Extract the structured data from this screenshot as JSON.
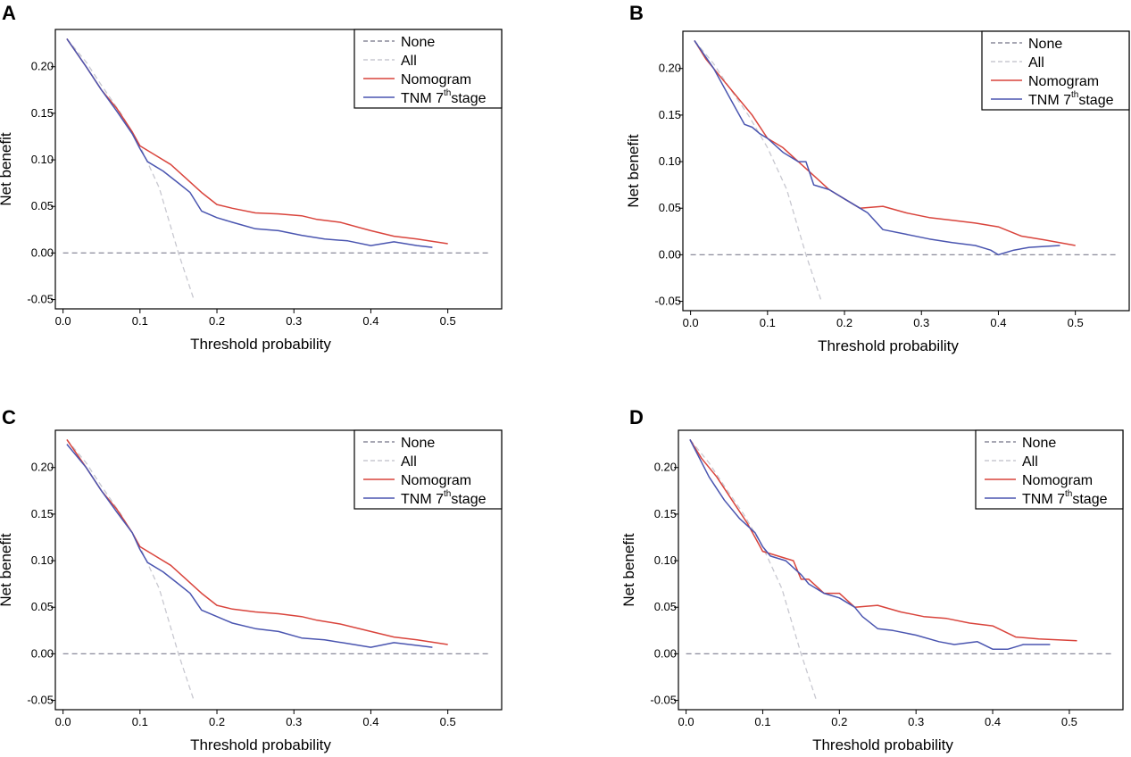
{
  "figure": {
    "colors": {
      "none": "#8a8a9a",
      "all": "#c8c8d0",
      "nomogram": "#d9443c",
      "tnm": "#4a55b0"
    }
  },
  "chart_data": [
    {
      "panel": "A",
      "type": "line",
      "xlabel": "Threshold probability",
      "ylabel": "Net benefit",
      "xticks": [
        "0.0",
        "0.1",
        "0.2",
        "0.3",
        "0.4",
        "0.5"
      ],
      "yticks": [
        "-0.05",
        "0.00",
        "0.05",
        "0.10",
        "0.15",
        "0.20"
      ],
      "xlim": [
        -0.01,
        0.57
      ],
      "ylim": [
        -0.06,
        0.24
      ],
      "legend": {
        "position": "top-right",
        "entries": [
          "None",
          "All",
          "Nomogram",
          "TNM 7",
          "th",
          "stage"
        ]
      },
      "series": [
        {
          "name": "None",
          "style": "dashed",
          "color": "#8a8a9a",
          "x": [
            0.0,
            0.555
          ],
          "y": [
            0.0,
            0.0
          ]
        },
        {
          "name": "All",
          "style": "dashed",
          "color": "#c8c8d0",
          "x": [
            0.005,
            0.03,
            0.05,
            0.075,
            0.1,
            0.125,
            0.15,
            0.17
          ],
          "y": [
            0.23,
            0.205,
            0.18,
            0.15,
            0.115,
            0.07,
            0.0,
            -0.05
          ]
        },
        {
          "name": "Nomogram",
          "style": "solid",
          "color": "#d9443c",
          "x": [
            0.005,
            0.03,
            0.05,
            0.07,
            0.09,
            0.1,
            0.12,
            0.14,
            0.16,
            0.18,
            0.2,
            0.22,
            0.25,
            0.28,
            0.31,
            0.33,
            0.36,
            0.4,
            0.43,
            0.46,
            0.5
          ],
          "y": [
            0.23,
            0.2,
            0.175,
            0.155,
            0.13,
            0.115,
            0.105,
            0.095,
            0.08,
            0.065,
            0.052,
            0.048,
            0.043,
            0.042,
            0.04,
            0.036,
            0.033,
            0.024,
            0.018,
            0.015,
            0.01
          ]
        },
        {
          "name": "TNM 7th stage",
          "style": "solid",
          "color": "#4a55b0",
          "x": [
            0.005,
            0.03,
            0.05,
            0.07,
            0.09,
            0.1,
            0.11,
            0.13,
            0.15,
            0.165,
            0.18,
            0.2,
            0.22,
            0.25,
            0.28,
            0.31,
            0.34,
            0.37,
            0.4,
            0.43,
            0.46,
            0.48
          ],
          "y": [
            0.23,
            0.2,
            0.175,
            0.152,
            0.128,
            0.112,
            0.098,
            0.088,
            0.075,
            0.065,
            0.045,
            0.038,
            0.033,
            0.026,
            0.024,
            0.019,
            0.015,
            0.013,
            0.008,
            0.012,
            0.008,
            0.006
          ]
        }
      ]
    },
    {
      "panel": "B",
      "type": "line",
      "xlabel": "Threshold probability",
      "ylabel": "Net benefit",
      "xticks": [
        "0.0",
        "0.1",
        "0.2",
        "0.3",
        "0.4",
        "0.5"
      ],
      "yticks": [
        "-0.05",
        "0.00",
        "0.05",
        "0.10",
        "0.15",
        "0.20"
      ],
      "xlim": [
        -0.01,
        0.57
      ],
      "ylim": [
        -0.06,
        0.24
      ],
      "legend": {
        "position": "top-right",
        "entries": [
          "None",
          "All",
          "Nomogram",
          "TNM 7",
          "th",
          "stage"
        ]
      },
      "series": [
        {
          "name": "None",
          "style": "dashed",
          "color": "#8a8a9a",
          "x": [
            0.0,
            0.555
          ],
          "y": [
            0.0,
            0.0
          ]
        },
        {
          "name": "All",
          "style": "dashed",
          "color": "#c8c8d0",
          "x": [
            0.005,
            0.03,
            0.05,
            0.075,
            0.1,
            0.125,
            0.15,
            0.17
          ],
          "y": [
            0.23,
            0.205,
            0.18,
            0.15,
            0.115,
            0.07,
            0.0,
            -0.05
          ]
        },
        {
          "name": "Nomogram",
          "style": "solid",
          "color": "#d9443c",
          "x": [
            0.005,
            0.02,
            0.04,
            0.06,
            0.08,
            0.1,
            0.12,
            0.14,
            0.16,
            0.18,
            0.2,
            0.22,
            0.25,
            0.28,
            0.31,
            0.34,
            0.37,
            0.4,
            0.43,
            0.46,
            0.5
          ],
          "y": [
            0.23,
            0.21,
            0.19,
            0.17,
            0.15,
            0.125,
            0.115,
            0.1,
            0.085,
            0.07,
            0.06,
            0.05,
            0.052,
            0.045,
            0.04,
            0.037,
            0.034,
            0.03,
            0.02,
            0.016,
            0.01
          ]
        },
        {
          "name": "TNM 7th stage",
          "style": "solid",
          "color": "#4a55b0",
          "x": [
            0.005,
            0.03,
            0.05,
            0.07,
            0.08,
            0.09,
            0.1,
            0.12,
            0.14,
            0.15,
            0.16,
            0.18,
            0.2,
            0.22,
            0.23,
            0.25,
            0.28,
            0.31,
            0.34,
            0.37,
            0.39,
            0.4,
            0.42,
            0.44,
            0.48
          ],
          "y": [
            0.23,
            0.2,
            0.17,
            0.14,
            0.137,
            0.13,
            0.125,
            0.11,
            0.1,
            0.1,
            0.075,
            0.07,
            0.06,
            0.05,
            0.045,
            0.027,
            0.022,
            0.017,
            0.013,
            0.01,
            0.005,
            0.0,
            0.005,
            0.008,
            0.01
          ]
        }
      ]
    },
    {
      "panel": "C",
      "type": "line",
      "xlabel": "Threshold probability",
      "ylabel": "Net benefit",
      "xticks": [
        "0.0",
        "0.1",
        "0.2",
        "0.3",
        "0.4",
        "0.5"
      ],
      "yticks": [
        "-0.05",
        "0.00",
        "0.05",
        "0.10",
        "0.15",
        "0.20"
      ],
      "xlim": [
        -0.01,
        0.57
      ],
      "ylim": [
        -0.06,
        0.24
      ],
      "legend": {
        "position": "top-right",
        "entries": [
          "None",
          "All",
          "Nomogram",
          "TNM 7",
          "th",
          "stage"
        ]
      },
      "series": [
        {
          "name": "None",
          "style": "dashed",
          "color": "#8a8a9a",
          "x": [
            0.0,
            0.555
          ],
          "y": [
            0.0,
            0.0
          ]
        },
        {
          "name": "All",
          "style": "dashed",
          "color": "#c8c8d0",
          "x": [
            0.005,
            0.03,
            0.05,
            0.075,
            0.1,
            0.125,
            0.15,
            0.17
          ],
          "y": [
            0.23,
            0.205,
            0.18,
            0.15,
            0.115,
            0.07,
            0.0,
            -0.05
          ]
        },
        {
          "name": "Nomogram",
          "style": "solid",
          "color": "#d9443c",
          "x": [
            0.005,
            0.03,
            0.05,
            0.07,
            0.09,
            0.1,
            0.12,
            0.14,
            0.16,
            0.18,
            0.2,
            0.22,
            0.25,
            0.28,
            0.31,
            0.33,
            0.36,
            0.4,
            0.43,
            0.46,
            0.5
          ],
          "y": [
            0.23,
            0.2,
            0.175,
            0.155,
            0.13,
            0.115,
            0.105,
            0.095,
            0.08,
            0.065,
            0.052,
            0.048,
            0.045,
            0.043,
            0.04,
            0.036,
            0.032,
            0.024,
            0.018,
            0.015,
            0.01
          ]
        },
        {
          "name": "TNM 7th stage",
          "style": "solid",
          "color": "#4a55b0",
          "x": [
            0.005,
            0.03,
            0.05,
            0.07,
            0.09,
            0.1,
            0.11,
            0.13,
            0.15,
            0.165,
            0.18,
            0.2,
            0.22,
            0.25,
            0.28,
            0.31,
            0.34,
            0.37,
            0.4,
            0.43,
            0.46,
            0.48
          ],
          "y": [
            0.225,
            0.2,
            0.175,
            0.152,
            0.13,
            0.112,
            0.098,
            0.088,
            0.075,
            0.065,
            0.047,
            0.04,
            0.033,
            0.027,
            0.024,
            0.017,
            0.015,
            0.011,
            0.007,
            0.012,
            0.009,
            0.007
          ]
        }
      ]
    },
    {
      "panel": "D",
      "type": "line",
      "xlabel": "Threshold probability",
      "ylabel": "Net benefit",
      "xticks": [
        "0.0",
        "0.1",
        "0.2",
        "0.3",
        "0.4",
        "0.5"
      ],
      "yticks": [
        "-0.05",
        "0.00",
        "0.05",
        "0.10",
        "0.15",
        "0.20"
      ],
      "xlim": [
        -0.01,
        0.57
      ],
      "ylim": [
        -0.06,
        0.24
      ],
      "legend": {
        "position": "top-right",
        "entries": [
          "None",
          "All",
          "Nomogram",
          "TNM 7",
          "th",
          "stage"
        ]
      },
      "series": [
        {
          "name": "None",
          "style": "dashed",
          "color": "#8a8a9a",
          "x": [
            0.0,
            0.555
          ],
          "y": [
            0.0,
            0.0
          ]
        },
        {
          "name": "All",
          "style": "dashed",
          "color": "#c8c8d0",
          "x": [
            0.005,
            0.03,
            0.05,
            0.075,
            0.1,
            0.125,
            0.15,
            0.17
          ],
          "y": [
            0.23,
            0.205,
            0.18,
            0.15,
            0.115,
            0.07,
            0.0,
            -0.05
          ]
        },
        {
          "name": "Nomogram",
          "style": "solid",
          "color": "#d9443c",
          "x": [
            0.005,
            0.02,
            0.04,
            0.06,
            0.08,
            0.09,
            0.1,
            0.12,
            0.14,
            0.15,
            0.16,
            0.18,
            0.2,
            0.22,
            0.25,
            0.28,
            0.31,
            0.34,
            0.37,
            0.4,
            0.43,
            0.46,
            0.51
          ],
          "y": [
            0.23,
            0.21,
            0.19,
            0.165,
            0.14,
            0.125,
            0.11,
            0.105,
            0.1,
            0.08,
            0.08,
            0.065,
            0.065,
            0.05,
            0.052,
            0.045,
            0.04,
            0.038,
            0.033,
            0.03,
            0.018,
            0.016,
            0.014
          ]
        },
        {
          "name": "TNM 7th stage",
          "style": "solid",
          "color": "#4a55b0",
          "x": [
            0.005,
            0.03,
            0.05,
            0.07,
            0.09,
            0.1,
            0.11,
            0.13,
            0.15,
            0.16,
            0.18,
            0.2,
            0.22,
            0.23,
            0.25,
            0.27,
            0.3,
            0.33,
            0.35,
            0.38,
            0.4,
            0.42,
            0.44,
            0.475
          ],
          "y": [
            0.23,
            0.19,
            0.165,
            0.145,
            0.13,
            0.115,
            0.105,
            0.1,
            0.085,
            0.075,
            0.065,
            0.06,
            0.05,
            0.04,
            0.027,
            0.025,
            0.02,
            0.013,
            0.01,
            0.013,
            0.005,
            0.005,
            0.01,
            0.01
          ]
        }
      ]
    }
  ]
}
